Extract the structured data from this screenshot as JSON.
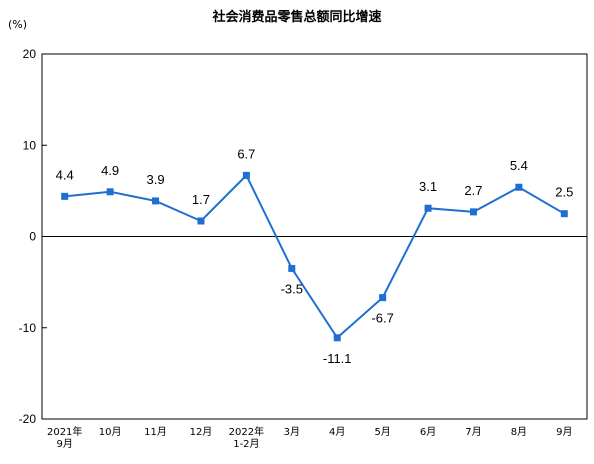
{
  "chart_data": {
    "type": "line",
    "title": "社会消费品零售总额同比增速",
    "unit": "(%)",
    "categories": [
      [
        "2021年",
        "9月"
      ],
      [
        "10月"
      ],
      [
        "11月"
      ],
      [
        "12月"
      ],
      [
        "2022年",
        "1-2月"
      ],
      [
        "3月"
      ],
      [
        "4月"
      ],
      [
        "5月"
      ],
      [
        "6月"
      ],
      [
        "7月"
      ],
      [
        "8月"
      ],
      [
        "9月"
      ]
    ],
    "series": [
      {
        "values": [
          4.4,
          4.9,
          3.9,
          1.7,
          6.7,
          -3.5,
          -11.1,
          -6.7,
          3.1,
          2.7,
          5.4,
          2.5
        ],
        "labels": [
          "4.4",
          "4.9",
          "3.9",
          "1.7",
          "6.7",
          "-3.5",
          "-11.1",
          "-6.7",
          "3.1",
          "2.7",
          "5.4",
          "2.5"
        ],
        "label_position": [
          "above",
          "above",
          "above",
          "above",
          "above",
          "below",
          "below",
          "below",
          "above",
          "above",
          "above",
          "above"
        ],
        "color": "#1f6fd1"
      }
    ],
    "ylim": [
      -20,
      20
    ],
    "yticks": [
      "20",
      "10",
      "0",
      "-10",
      "-20"
    ],
    "ytick_values": [
      20,
      10,
      0,
      -10,
      -20
    ],
    "grid": false,
    "legend": "none"
  }
}
